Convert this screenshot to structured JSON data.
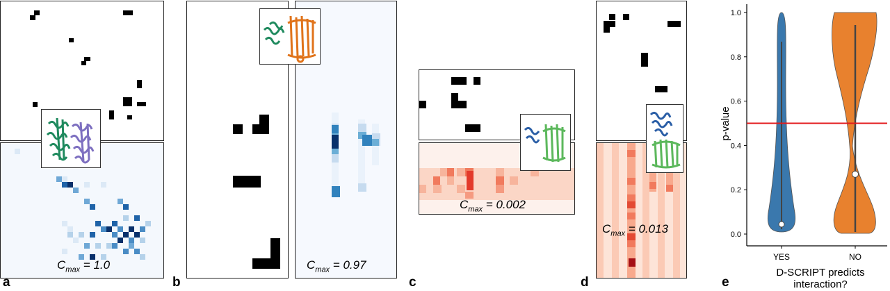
{
  "panel_labels": [
    "a",
    "b",
    "c",
    "d",
    "e"
  ],
  "cmax_prefix": "C",
  "cmax_sub": "max",
  "cmax_values": {
    "a": "= 1.0",
    "b": "= 0.97",
    "c": "= 0.002",
    "d": "= 0.013"
  },
  "structure_icons": {
    "a": "protein-structure-green-purple",
    "b": "protein-structure-green-orange",
    "c": "protein-structure-blue-green",
    "d": "protein-structure-blue-green"
  },
  "colors": {
    "contact": "#000000",
    "blue_map": "#08306b",
    "red_map": "#b2182b",
    "yes": "#3a78ad",
    "no": "#e8812e",
    "threshold": "#e31a1c"
  },
  "chart_data": {
    "type": "violin",
    "categories": [
      "YES",
      "NO"
    ],
    "ylabel": "p-value",
    "xlabel": "D-SCRIPT predicts\ninteraction?",
    "ylim": [
      -0.05,
      1.0
    ],
    "yticks": [
      "0.0",
      "0.2",
      "0.4",
      "0.6",
      "0.8",
      "1.0"
    ],
    "medians": {
      "YES": 0.05,
      "NO": 0.27
    },
    "threshold_line": 0.5,
    "series": [
      {
        "name": "YES",
        "color": "#3a78ad"
      },
      {
        "name": "NO",
        "color": "#e8812e"
      }
    ]
  }
}
